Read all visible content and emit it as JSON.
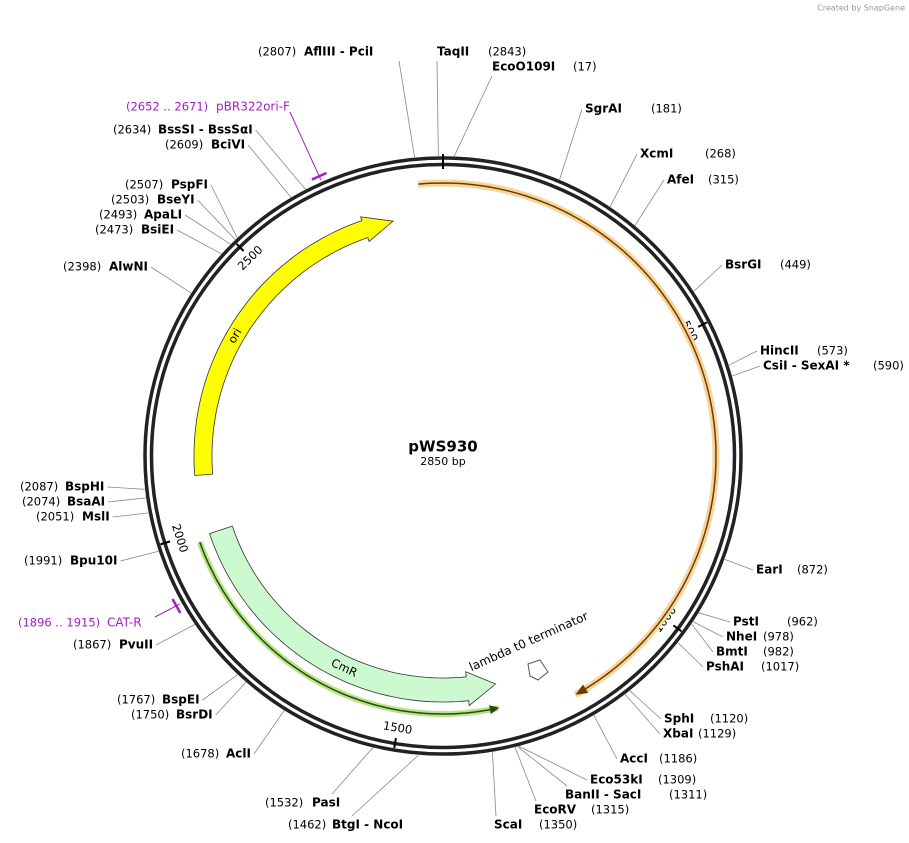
{
  "header": {
    "credit": "Created by SnapGene"
  },
  "plasmid": {
    "name": "pWS930",
    "length": {
      "value": 2850,
      "label": "2850 bp"
    },
    "ticks": [
      500,
      1000,
      1500,
      2000,
      2500
    ],
    "features": [
      {
        "name": "ori"
      },
      {
        "name": "CmR"
      },
      {
        "name": "lambda t0 terminator"
      }
    ],
    "primers": [
      {
        "range": "(2652 .. 2671)",
        "name": "pBR322ori-F"
      },
      {
        "range": "(1896 .. 1915)",
        "name": "CAT-R"
      }
    ],
    "sites": [
      {
        "names": "AflIII - PciI",
        "pos": {
          "value": 2807,
          "label": "(2807)"
        }
      },
      {
        "names": "TaqII",
        "pos": {
          "value": 2843,
          "label": "(2843)"
        }
      },
      {
        "names": "EcoO109I",
        "pos": {
          "value": 17,
          "label": "(17)"
        }
      },
      {
        "names": "SgrAI",
        "pos": {
          "value": 181,
          "label": "(181)"
        }
      },
      {
        "names": "XcmI",
        "pos": {
          "value": 268,
          "label": "(268)"
        }
      },
      {
        "names": "AfeI",
        "pos": {
          "value": 315,
          "label": "(315)"
        }
      },
      {
        "names": "BsrGI",
        "pos": {
          "value": 449,
          "label": "(449)"
        }
      },
      {
        "names": "HincII",
        "pos": {
          "value": 573,
          "label": "(573)"
        }
      },
      {
        "names": "CsiI - SexAI *",
        "pos": {
          "value": 590,
          "label": "(590)"
        }
      },
      {
        "names": "EarI",
        "pos": {
          "value": 872,
          "label": "(872)"
        }
      },
      {
        "names": "PstI",
        "pos": {
          "value": 962,
          "label": "(962)"
        }
      },
      {
        "names": "NheI",
        "pos": {
          "value": 978,
          "label": "(978)"
        }
      },
      {
        "names": "BmtI",
        "pos": {
          "value": 982,
          "label": "(982)"
        }
      },
      {
        "names": "PshAI",
        "pos": {
          "value": 1017,
          "label": "(1017)"
        }
      },
      {
        "names": "SphI",
        "pos": {
          "value": 1120,
          "label": "(1120)"
        }
      },
      {
        "names": "XbaI",
        "pos": {
          "value": 1129,
          "label": "(1129)"
        }
      },
      {
        "names": "AccI",
        "pos": {
          "value": 1186,
          "label": "(1186)"
        }
      },
      {
        "names": "Eco53kI",
        "pos": {
          "value": 1309,
          "label": "(1309)"
        }
      },
      {
        "names": "BanII - SacI",
        "pos": {
          "value": 1311,
          "label": "(1311)"
        }
      },
      {
        "names": "EcoRV",
        "pos": {
          "value": 1315,
          "label": "(1315)"
        }
      },
      {
        "names": "ScaI",
        "pos": {
          "value": 1350,
          "label": "(1350)"
        }
      },
      {
        "names": "BtgI - NcoI",
        "pos": {
          "value": 1462,
          "label": "(1462)"
        }
      },
      {
        "names": "PasI",
        "pos": {
          "value": 1532,
          "label": "(1532)"
        }
      },
      {
        "names": "AclI",
        "pos": {
          "value": 1678,
          "label": "(1678)"
        }
      },
      {
        "names": "BsrDI",
        "pos": {
          "value": 1750,
          "label": "(1750)"
        }
      },
      {
        "names": "BspEI",
        "pos": {
          "value": 1767,
          "label": "(1767)"
        }
      },
      {
        "names": "PvuII",
        "pos": {
          "value": 1867,
          "label": "(1867)"
        }
      },
      {
        "names": "Bpu10I",
        "pos": {
          "value": 1991,
          "label": "(1991)"
        }
      },
      {
        "names": "MslI",
        "pos": {
          "value": 2051,
          "label": "(2051)"
        }
      },
      {
        "names": "BsaAI",
        "pos": {
          "value": 2074,
          "label": "(2074)"
        }
      },
      {
        "names": "BspHI",
        "pos": {
          "value": 2087,
          "label": "(2087)"
        }
      },
      {
        "names": "AlwNI",
        "pos": {
          "value": 2398,
          "label": "(2398)"
        }
      },
      {
        "names": "BsiEI",
        "pos": {
          "value": 2473,
          "label": "(2473)"
        }
      },
      {
        "names": "ApaLI",
        "pos": {
          "value": 2493,
          "label": "(2493)"
        }
      },
      {
        "names": "BseYI",
        "pos": {
          "value": 2503,
          "label": "(2503)"
        }
      },
      {
        "names": "PspFI",
        "pos": {
          "value": 2507,
          "label": "(2507)"
        }
      },
      {
        "names": "BciVI",
        "pos": {
          "value": 2609,
          "label": "(2609)"
        }
      },
      {
        "names": "BssSI - BssSαI",
        "pos": {
          "value": 2634,
          "label": "(2634)"
        }
      }
    ]
  }
}
